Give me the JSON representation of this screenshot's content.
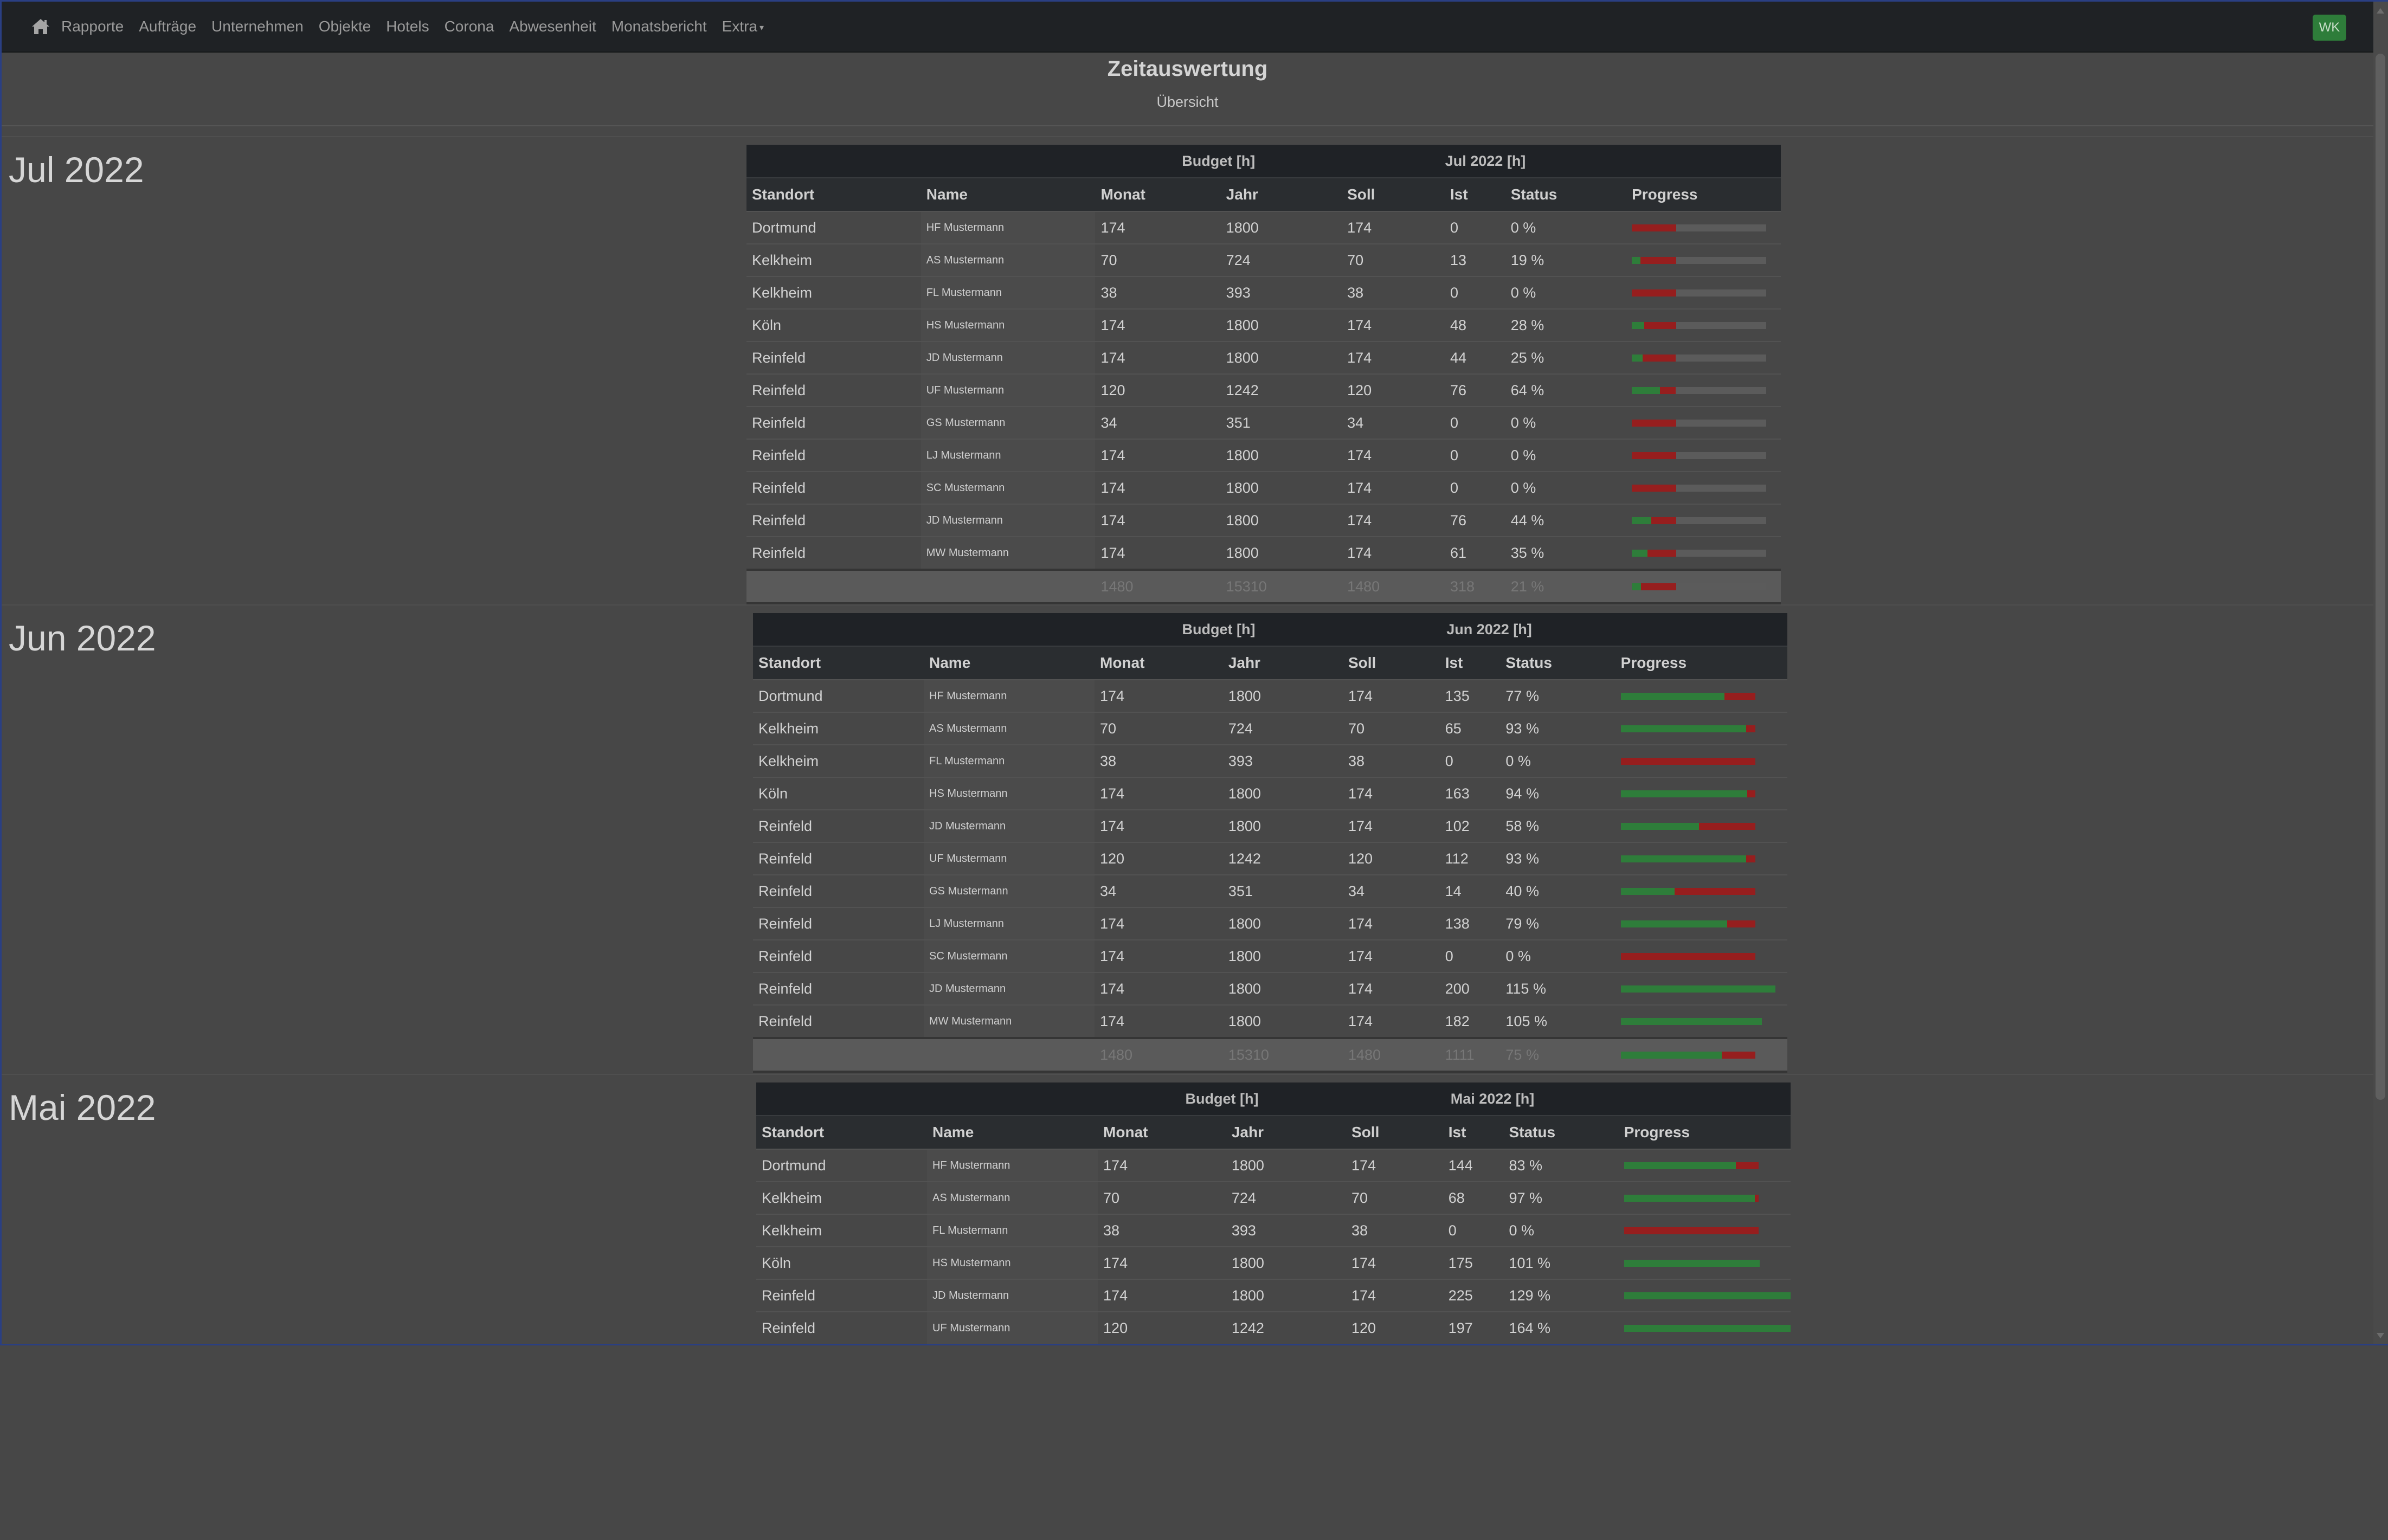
{
  "nav": {
    "items": [
      "Rapporte",
      "Aufträge",
      "Unternehmen",
      "Objekte",
      "Hotels",
      "Corona",
      "Abwesenheit",
      "Monatsbericht",
      "Extra"
    ],
    "user": "WK",
    "icon": "home-icon"
  },
  "page": {
    "title": "Zeitauswertung",
    "subtitle": "Übersicht"
  },
  "colors": {
    "navbar": "#1f2225",
    "progress_done": "#2e7d3a",
    "progress_missing": "#961e1e",
    "badge": "#2e7d3a"
  },
  "sections": [
    {
      "month": "Jul 2022",
      "group_budget": "Budget [h]",
      "group_month": "Jul 2022 [h]",
      "columns": [
        "Standort",
        "Name",
        "Monat",
        "Jahr",
        "Soll",
        "Ist",
        "Status",
        "Progress"
      ],
      "rows": [
        {
          "standort": "Dortmund",
          "name": "HF Mustermann",
          "monat": "174",
          "jahr": "1800",
          "soll": "174",
          "ist": "0",
          "status": "0 %",
          "progress": 0
        },
        {
          "standort": "Kelkheim",
          "name": "AS Mustermann",
          "monat": "70",
          "jahr": "724",
          "soll": "70",
          "ist": "13",
          "status": "19 %",
          "progress": 19
        },
        {
          "standort": "Kelkheim",
          "name": "FL Mustermann",
          "monat": "38",
          "jahr": "393",
          "soll": "38",
          "ist": "0",
          "status": "0 %",
          "progress": 0
        },
        {
          "standort": "Köln",
          "name": "HS Mustermann",
          "monat": "174",
          "jahr": "1800",
          "soll": "174",
          "ist": "48",
          "status": "28 %",
          "progress": 28
        },
        {
          "standort": "Reinfeld",
          "name": "JD Mustermann",
          "monat": "174",
          "jahr": "1800",
          "soll": "174",
          "ist": "44",
          "status": "25 %",
          "progress": 25
        },
        {
          "standort": "Reinfeld",
          "name": "UF Mustermann",
          "monat": "120",
          "jahr": "1242",
          "soll": "120",
          "ist": "76",
          "status": "64 %",
          "progress": 64
        },
        {
          "standort": "Reinfeld",
          "name": "GS Mustermann",
          "monat": "34",
          "jahr": "351",
          "soll": "34",
          "ist": "0",
          "status": "0 %",
          "progress": 0
        },
        {
          "standort": "Reinfeld",
          "name": "LJ Mustermann",
          "monat": "174",
          "jahr": "1800",
          "soll": "174",
          "ist": "0",
          "status": "0 %",
          "progress": 0
        },
        {
          "standort": "Reinfeld",
          "name": "SC Mustermann",
          "monat": "174",
          "jahr": "1800",
          "soll": "174",
          "ist": "0",
          "status": "0 %",
          "progress": 0
        },
        {
          "standort": "Reinfeld",
          "name": "JD Mustermann",
          "monat": "174",
          "jahr": "1800",
          "soll": "174",
          "ist": "76",
          "status": "44 %",
          "progress": 44
        },
        {
          "standort": "Reinfeld",
          "name": "MW Mustermann",
          "monat": "174",
          "jahr": "1800",
          "soll": "174",
          "ist": "61",
          "status": "35 %",
          "progress": 35
        }
      ],
      "total": {
        "monat": "1480",
        "jahr": "15310",
        "soll": "1480",
        "ist": "318",
        "status": "21 %",
        "progress": 21
      },
      "progress_fraction_of_track": 0.33
    },
    {
      "month": "Jun 2022",
      "group_budget": "Budget [h]",
      "group_month": "Jun 2022 [h]",
      "columns": [
        "Standort",
        "Name",
        "Monat",
        "Jahr",
        "Soll",
        "Ist",
        "Status",
        "Progress"
      ],
      "rows": [
        {
          "standort": "Dortmund",
          "name": "HF Mustermann",
          "monat": "174",
          "jahr": "1800",
          "soll": "174",
          "ist": "135",
          "status": "77 %",
          "progress": 77
        },
        {
          "standort": "Kelkheim",
          "name": "AS Mustermann",
          "monat": "70",
          "jahr": "724",
          "soll": "70",
          "ist": "65",
          "status": "93 %",
          "progress": 93
        },
        {
          "standort": "Kelkheim",
          "name": "FL Mustermann",
          "monat": "38",
          "jahr": "393",
          "soll": "38",
          "ist": "0",
          "status": "0 %",
          "progress": 0
        },
        {
          "standort": "Köln",
          "name": "HS Mustermann",
          "monat": "174",
          "jahr": "1800",
          "soll": "174",
          "ist": "163",
          "status": "94 %",
          "progress": 94
        },
        {
          "standort": "Reinfeld",
          "name": "JD Mustermann",
          "monat": "174",
          "jahr": "1800",
          "soll": "174",
          "ist": "102",
          "status": "58 %",
          "progress": 58
        },
        {
          "standort": "Reinfeld",
          "name": "UF Mustermann",
          "monat": "120",
          "jahr": "1242",
          "soll": "120",
          "ist": "112",
          "status": "93 %",
          "progress": 93
        },
        {
          "standort": "Reinfeld",
          "name": "GS Mustermann",
          "monat": "34",
          "jahr": "351",
          "soll": "34",
          "ist": "14",
          "status": "40 %",
          "progress": 40
        },
        {
          "standort": "Reinfeld",
          "name": "LJ Mustermann",
          "monat": "174",
          "jahr": "1800",
          "soll": "174",
          "ist": "138",
          "status": "79 %",
          "progress": 79
        },
        {
          "standort": "Reinfeld",
          "name": "SC Mustermann",
          "monat": "174",
          "jahr": "1800",
          "soll": "174",
          "ist": "0",
          "status": "0 %",
          "progress": 0
        },
        {
          "standort": "Reinfeld",
          "name": "JD Mustermann",
          "monat": "174",
          "jahr": "1800",
          "soll": "174",
          "ist": "200",
          "status": "115 %",
          "progress": 115
        },
        {
          "standort": "Reinfeld",
          "name": "MW Mustermann",
          "monat": "174",
          "jahr": "1800",
          "soll": "174",
          "ist": "182",
          "status": "105 %",
          "progress": 105
        }
      ],
      "total": {
        "monat": "1480",
        "jahr": "15310",
        "soll": "1480",
        "ist": "1111",
        "status": "75 %",
        "progress": 75
      },
      "progress_fraction_of_track": 1.0
    },
    {
      "month": "Mai 2022",
      "group_budget": "Budget [h]",
      "group_month": "Mai 2022 [h]",
      "columns": [
        "Standort",
        "Name",
        "Monat",
        "Jahr",
        "Soll",
        "Ist",
        "Status",
        "Progress"
      ],
      "rows": [
        {
          "standort": "Dortmund",
          "name": "HF Mustermann",
          "monat": "174",
          "jahr": "1800",
          "soll": "174",
          "ist": "144",
          "status": "83 %",
          "progress": 83
        },
        {
          "standort": "Kelkheim",
          "name": "AS Mustermann",
          "monat": "70",
          "jahr": "724",
          "soll": "70",
          "ist": "68",
          "status": "97 %",
          "progress": 97
        },
        {
          "standort": "Kelkheim",
          "name": "FL Mustermann",
          "monat": "38",
          "jahr": "393",
          "soll": "38",
          "ist": "0",
          "status": "0 %",
          "progress": 0
        },
        {
          "standort": "Köln",
          "name": "HS Mustermann",
          "monat": "174",
          "jahr": "1800",
          "soll": "174",
          "ist": "175",
          "status": "101 %",
          "progress": 101
        },
        {
          "standort": "Reinfeld",
          "name": "JD Mustermann",
          "monat": "174",
          "jahr": "1800",
          "soll": "174",
          "ist": "225",
          "status": "129 %",
          "progress": 129
        },
        {
          "standort": "Reinfeld",
          "name": "UF Mustermann",
          "monat": "120",
          "jahr": "1242",
          "soll": "120",
          "ist": "197",
          "status": "164 %",
          "progress": 164
        }
      ],
      "total": null,
      "progress_fraction_of_track": 1.0
    }
  ]
}
